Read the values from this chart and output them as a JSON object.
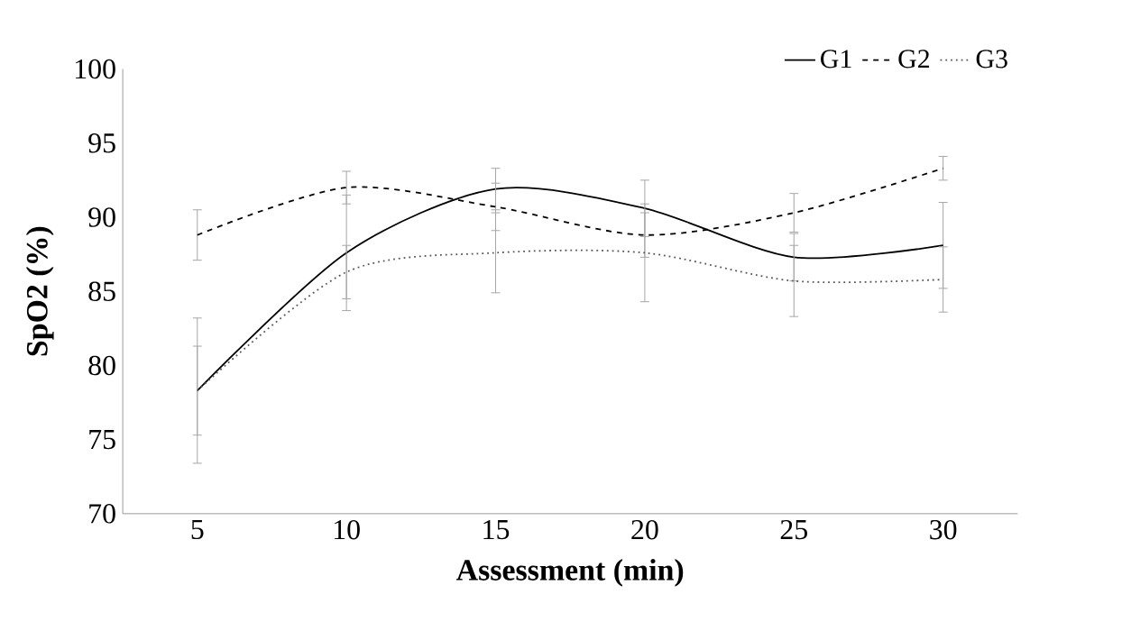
{
  "chart_data": {
    "type": "line",
    "xlabel": "Assessment (min)",
    "ylabel": "SpO2 (%)",
    "categories": [
      "5",
      "10",
      "15",
      "20",
      "25",
      "30"
    ],
    "ylim": [
      70,
      100
    ],
    "yticks": [
      70,
      75,
      80,
      85,
      90,
      95,
      100
    ],
    "grid": false,
    "legend": "top right",
    "marker": "none",
    "series": [
      {
        "name": "G1",
        "color": "#000000",
        "line_style": "solid",
        "values": [
          78.3,
          87.6,
          91.9,
          90.6,
          87.3,
          88.1
        ],
        "errors": [
          4.9,
          3.9,
          1.4,
          1.9,
          1.6,
          2.9
        ]
      },
      {
        "name": "G2",
        "color": "#000000",
        "line_style": "dashed",
        "values": [
          88.8,
          92.0,
          90.7,
          88.8,
          90.3,
          93.3
        ],
        "errors": [
          1.7,
          1.1,
          1.6,
          1.5,
          1.3,
          0.8
        ]
      },
      {
        "name": "G3",
        "color": "#555555",
        "line_style": "dotted",
        "values": [
          78.3,
          86.3,
          87.6,
          87.6,
          85.7,
          85.8
        ],
        "errors": [
          3.0,
          1.8,
          2.7,
          3.3,
          2.4,
          2.2
        ]
      }
    ]
  }
}
